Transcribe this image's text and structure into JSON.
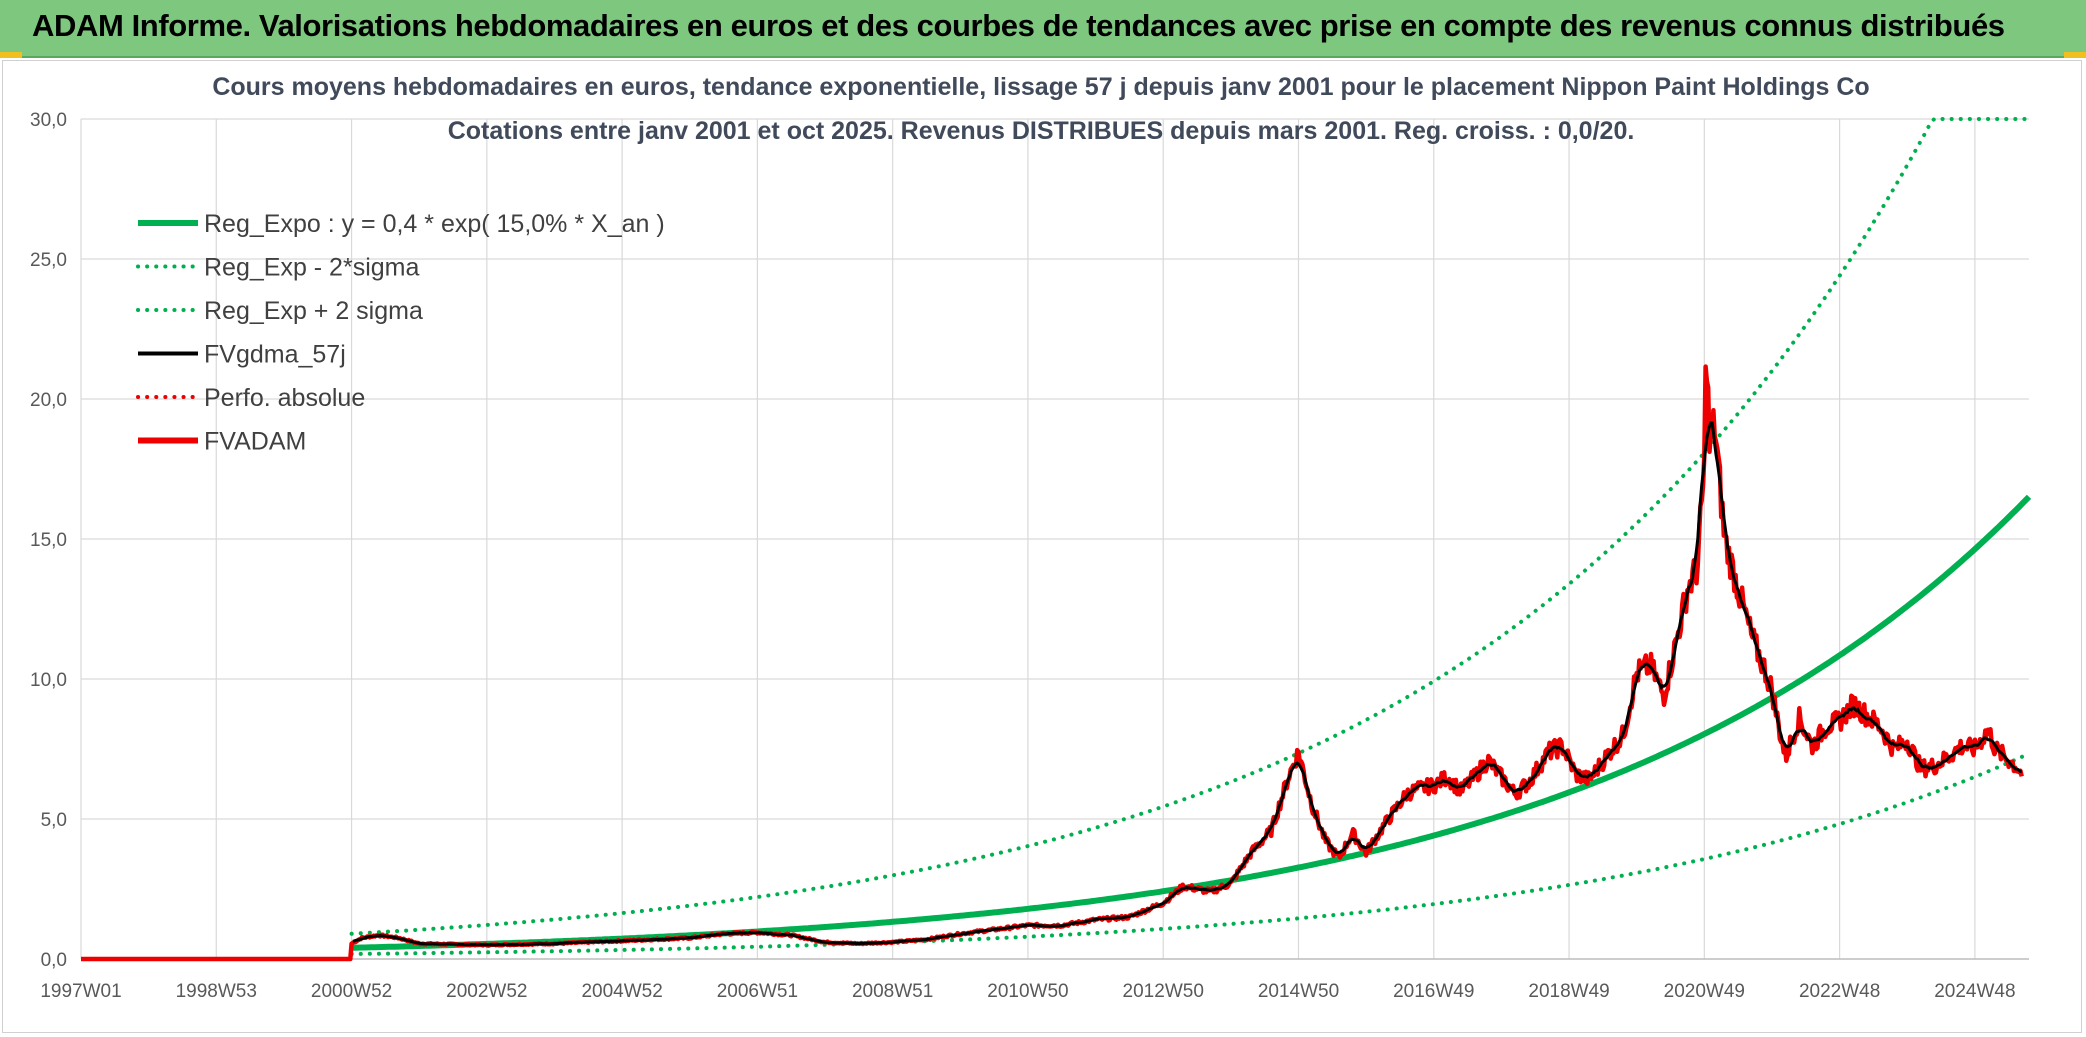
{
  "banner": {
    "title": "ADAM Informe. Valorisations hebdomadaires en euros et des courbes de tendances avec prise en compte des revenus connus distribués"
  },
  "colors": {
    "banner_bg": "#7dc87e",
    "reg_green": "#00b050",
    "fvgdma": "#000000",
    "fvadam": "#ee0000",
    "grid": "#d9d9d9"
  },
  "chart_data": {
    "type": "line",
    "title": "Cours moyens hebdomadaires en euros, tendance exponentielle, lissage 57 j depuis janv 2001 pour le placement Nippon Paint Holdings Co",
    "subtitle": "Cotations entre janv 2001 et oct 2025. Revenus DISTRIBUES depuis mars 2001. Reg. croiss. : 0,0/20.",
    "xlabel": "",
    "ylabel": "",
    "xlim": [
      1997.0,
      2025.8
    ],
    "ylim": [
      0,
      30
    ],
    "y_ticks": [
      "0,0",
      "5,0",
      "10,0",
      "15,0",
      "20,0",
      "25,0",
      "30,0"
    ],
    "x_ticks": [
      {
        "label": "1997W01",
        "x": 1997.0
      },
      {
        "label": "1998W53",
        "x": 1999.0
      },
      {
        "label": "2000W52",
        "x": 2001.0
      },
      {
        "label": "2002W52",
        "x": 2003.0
      },
      {
        "label": "2004W52",
        "x": 2005.0
      },
      {
        "label": "2006W51",
        "x": 2007.0
      },
      {
        "label": "2008W51",
        "x": 2009.0
      },
      {
        "label": "2010W50",
        "x": 2011.0
      },
      {
        "label": "2012W50",
        "x": 2013.0
      },
      {
        "label": "2014W50",
        "x": 2015.0
      },
      {
        "label": "2016W49",
        "x": 2017.0
      },
      {
        "label": "2018W49",
        "x": 2019.0
      },
      {
        "label": "2020W49",
        "x": 2021.0
      },
      {
        "label": "2022W48",
        "x": 2023.0
      },
      {
        "label": "2024W48",
        "x": 2025.0
      }
    ],
    "grid": true,
    "legend_position": "top-left",
    "regression": {
      "a": 0.4,
      "rate": 0.15,
      "start": 2001.0,
      "band_factor": 2.25
    },
    "series": [
      {
        "name": "Reg_Expo : y = 0,4 * exp( 15,0% *  X_an )",
        "style": "solid-thick",
        "color": "#00b050",
        "kind": "reg"
      },
      {
        "name": "Reg_Exp - 2*sigma",
        "style": "dotted",
        "color": "#00b050",
        "kind": "reg_low"
      },
      {
        "name": "Reg_Exp + 2 sigma",
        "style": "dotted",
        "color": "#00b050",
        "kind": "reg_high"
      },
      {
        "name": "FVgdma_57j",
        "style": "solid",
        "color": "#000000",
        "kind": "smooth"
      },
      {
        "name": "Perfo. absolue",
        "style": "dotted",
        "color": "#ee0000",
        "kind": "none"
      },
      {
        "name": "FVADAM",
        "style": "solid-thick",
        "color": "#ee0000",
        "kind": "price"
      }
    ],
    "price_points": [
      [
        1997.0,
        0
      ],
      [
        2000.99,
        0
      ],
      [
        2001.0,
        0.55
      ],
      [
        2001.15,
        0.75
      ],
      [
        2001.4,
        0.85
      ],
      [
        2001.7,
        0.75
      ],
      [
        2002.0,
        0.55
      ],
      [
        2003.0,
        0.5
      ],
      [
        2004.0,
        0.55
      ],
      [
        2005.0,
        0.65
      ],
      [
        2006.0,
        0.75
      ],
      [
        2006.5,
        0.9
      ],
      [
        2007.0,
        0.95
      ],
      [
        2007.5,
        0.85
      ],
      [
        2008.0,
        0.6
      ],
      [
        2008.5,
        0.55
      ],
      [
        2009.0,
        0.6
      ],
      [
        2009.5,
        0.7
      ],
      [
        2010.0,
        0.9
      ],
      [
        2010.5,
        1.05
      ],
      [
        2011.0,
        1.2
      ],
      [
        2011.5,
        1.2
      ],
      [
        2012.0,
        1.4
      ],
      [
        2012.5,
        1.5
      ],
      [
        2013.0,
        2.0
      ],
      [
        2013.3,
        2.6
      ],
      [
        2013.7,
        2.4
      ],
      [
        2014.0,
        2.7
      ],
      [
        2014.3,
        3.8
      ],
      [
        2014.6,
        4.6
      ],
      [
        2014.85,
        6.5
      ],
      [
        2015.0,
        7.4
      ],
      [
        2015.2,
        5.5
      ],
      [
        2015.4,
        4.2
      ],
      [
        2015.6,
        3.6
      ],
      [
        2015.8,
        4.5
      ],
      [
        2016.0,
        3.8
      ],
      [
        2016.3,
        4.9
      ],
      [
        2016.6,
        5.9
      ],
      [
        2016.8,
        6.1
      ],
      [
        2017.0,
        6.2
      ],
      [
        2017.2,
        6.5
      ],
      [
        2017.4,
        6.0
      ],
      [
        2017.6,
        6.5
      ],
      [
        2017.8,
        7.1
      ],
      [
        2018.0,
        6.5
      ],
      [
        2018.2,
        5.9
      ],
      [
        2018.4,
        6.3
      ],
      [
        2018.7,
        7.4
      ],
      [
        2018.9,
        7.6
      ],
      [
        2019.1,
        6.6
      ],
      [
        2019.3,
        6.4
      ],
      [
        2019.6,
        7.4
      ],
      [
        2019.8,
        8.0
      ],
      [
        2020.0,
        10.2
      ],
      [
        2020.2,
        10.5
      ],
      [
        2020.4,
        9.4
      ],
      [
        2020.6,
        11.5
      ],
      [
        2020.75,
        13.2
      ],
      [
        2020.9,
        14.0
      ],
      [
        2021.0,
        17.6
      ],
      [
        2021.03,
        22.3
      ],
      [
        2021.08,
        18.0
      ],
      [
        2021.15,
        19.2
      ],
      [
        2021.3,
        15.0
      ],
      [
        2021.5,
        13.2
      ],
      [
        2021.7,
        11.5
      ],
      [
        2021.9,
        10.3
      ],
      [
        2022.0,
        9.6
      ],
      [
        2022.1,
        8.3
      ],
      [
        2022.2,
        7.2
      ],
      [
        2022.4,
        8.6
      ],
      [
        2022.6,
        7.6
      ],
      [
        2022.8,
        8.3
      ],
      [
        2023.0,
        8.5
      ],
      [
        2023.2,
        9.1
      ],
      [
        2023.4,
        8.7
      ],
      [
        2023.6,
        8.3
      ],
      [
        2023.8,
        7.5
      ],
      [
        2024.0,
        7.8
      ],
      [
        2024.2,
        6.8
      ],
      [
        2024.4,
        6.9
      ],
      [
        2024.6,
        7.2
      ],
      [
        2024.8,
        7.6
      ],
      [
        2025.0,
        7.5
      ],
      [
        2025.2,
        8.2
      ],
      [
        2025.3,
        7.5
      ],
      [
        2025.5,
        7.1
      ],
      [
        2025.6,
        6.9
      ],
      [
        2025.7,
        6.6
      ]
    ]
  }
}
